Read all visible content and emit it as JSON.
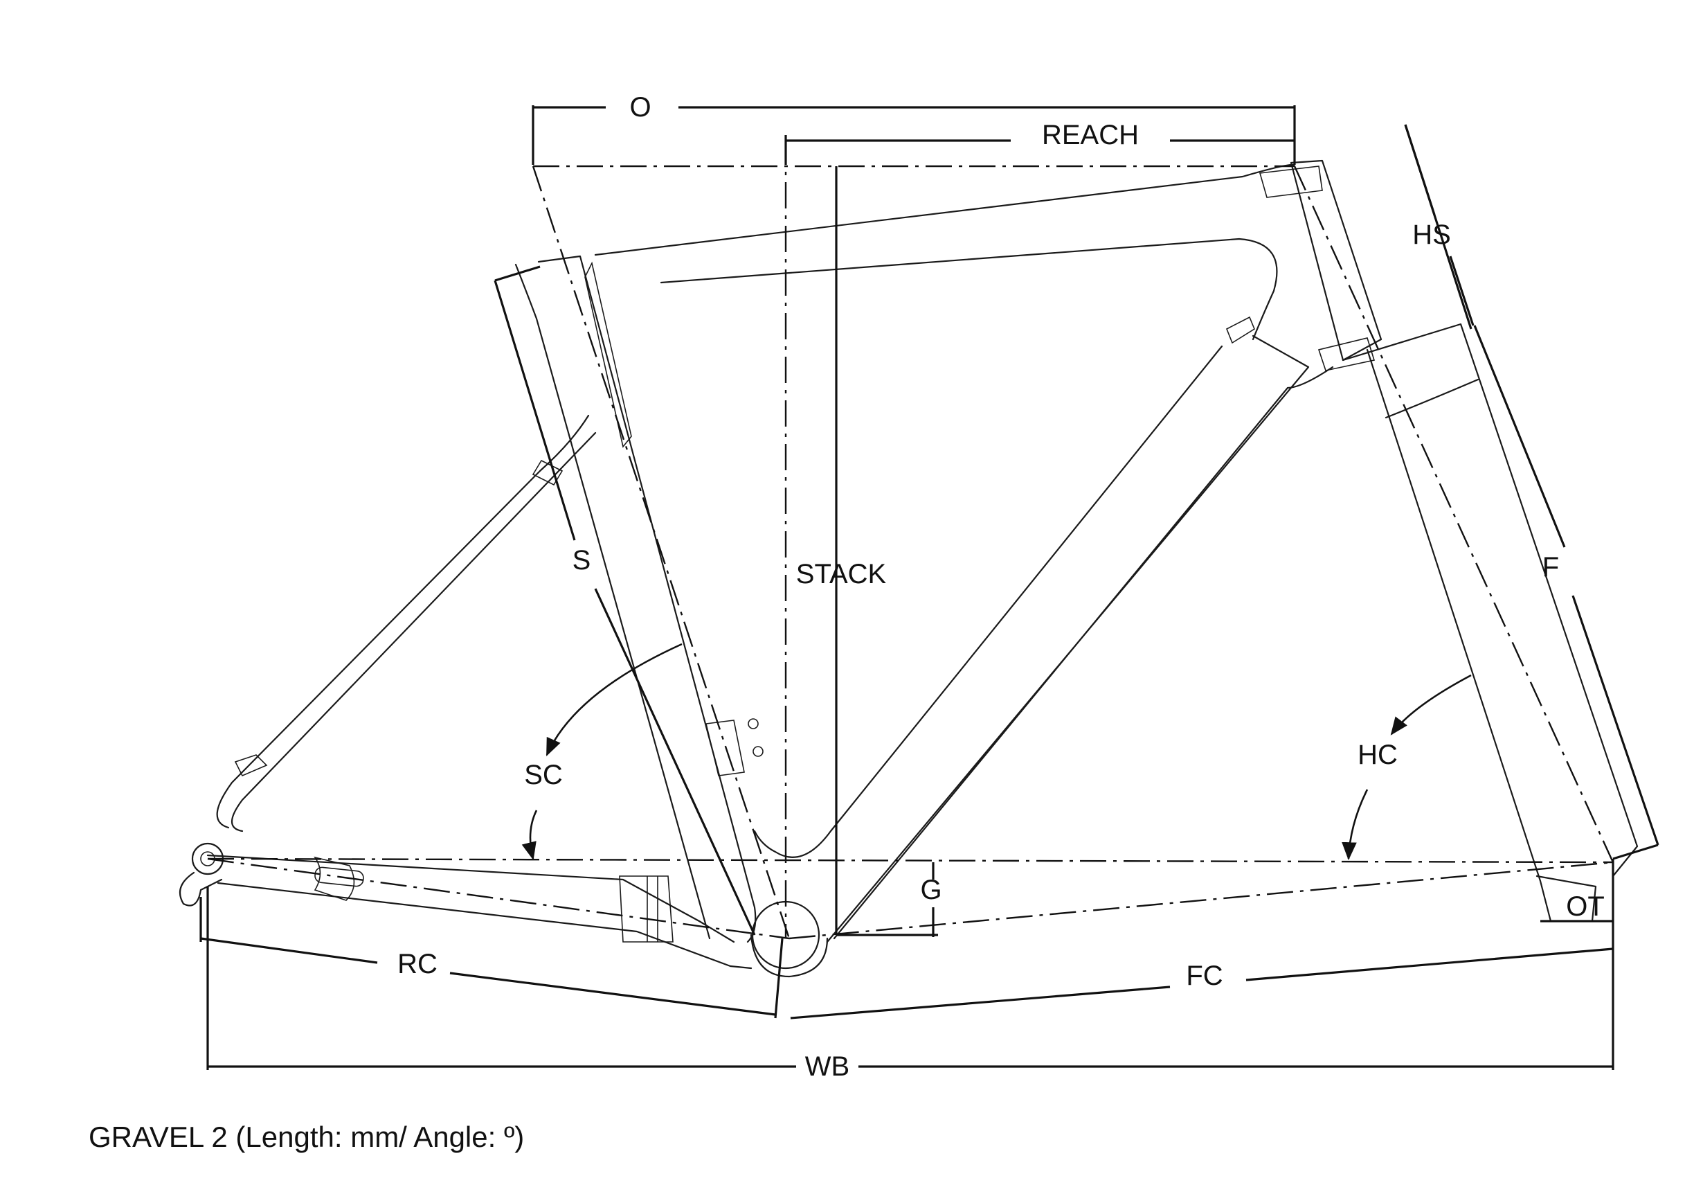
{
  "caption": "GRAVEL 2 (Length: mm/ Angle: º)",
  "dimensions": {
    "O": "O",
    "REACH": "REACH",
    "HS": "HS",
    "S": "S",
    "STACK": "STACK",
    "F": "F",
    "SC": "SC",
    "HC": "HC",
    "G": "G",
    "OT": "OT",
    "RC": "RC",
    "FC": "FC",
    "WB": "WB"
  },
  "colors": {
    "line": "#111111",
    "background": "#ffffff"
  }
}
